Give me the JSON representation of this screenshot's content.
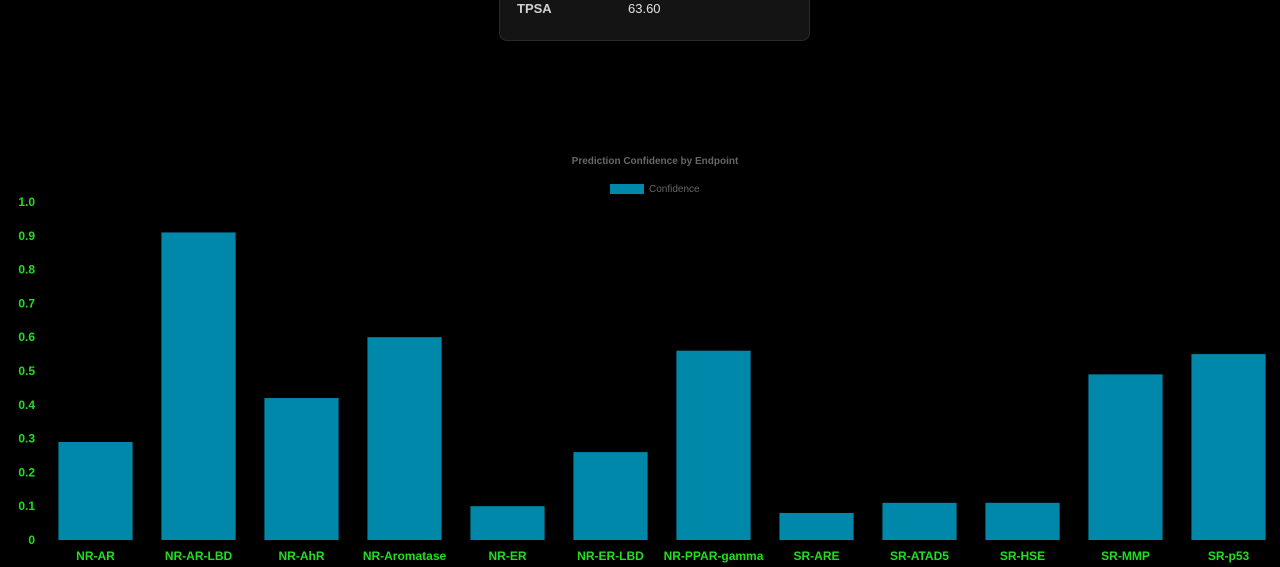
{
  "property_card": {
    "name": "TPSA",
    "value": "63.60"
  },
  "chart_data": {
    "type": "bar",
    "title": "Prediction Confidence by Endpoint",
    "legend_position": "top-center",
    "series": [
      {
        "name": "Confidence",
        "color": "#0088aa",
        "values": [
          0.29,
          0.91,
          0.42,
          0.6,
          0.1,
          0.26,
          0.56,
          0.08,
          0.11,
          0.11,
          0.49,
          0.55
        ]
      }
    ],
    "categories": [
      "NR-AR",
      "NR-AR-LBD",
      "NR-AhR",
      "NR-Aromatase",
      "NR-ER",
      "NR-ER-LBD",
      "NR-PPAR-gamma",
      "SR-ARE",
      "SR-ATAD5",
      "SR-HSE",
      "SR-MMP",
      "SR-p53"
    ],
    "ylim": [
      0,
      1.0
    ],
    "yticks": [
      "0",
      "0.1",
      "0.2",
      "0.3",
      "0.4",
      "0.5",
      "0.6",
      "0.7",
      "0.8",
      "0.9",
      "1.0"
    ],
    "grid": false,
    "tick_color": "#22dd22"
  }
}
